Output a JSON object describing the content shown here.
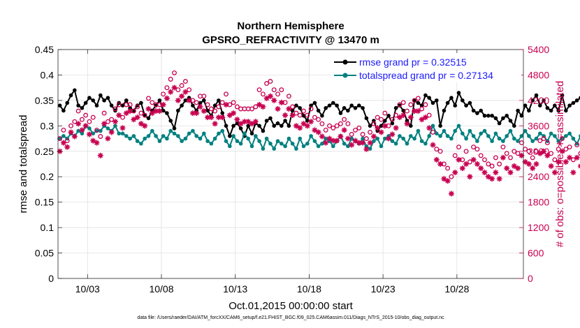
{
  "chart_data": {
    "type": "line",
    "title": "Northern Hemisphere",
    "subtitle": "GPSRO_REFRACTIVITY @ 13470 m",
    "xlabel": "Oct.01,2015 00:00:00 start",
    "ylabel": "rmse and totalspread",
    "ylabel_right": "# of obs: o=possible; ∗=assimilated",
    "footnote": "data file: /Users/raeder/DAI/ATM_forcXX/CAM6_setup/f.e21.FHIST_BGC.f09_025.CAM6assim.011/Diags_NTrS_2015-10/obs_diag_output.nc",
    "xlim": [
      1,
      32.5
    ],
    "ylim": [
      0,
      0.45
    ],
    "ylim_right": [
      0,
      5400
    ],
    "x_ticks": [
      3,
      8,
      13,
      18,
      23,
      28
    ],
    "x_tick_labels": [
      "10/03",
      "10/08",
      "10/13",
      "10/18",
      "10/23",
      "10/28"
    ],
    "y_ticks": [
      0,
      0.05,
      0.1,
      0.15,
      0.2,
      0.25,
      0.3,
      0.35,
      0.4,
      0.45
    ],
    "y_tick_labels": [
      "0",
      "0.05",
      "0.1",
      "0.15",
      "0.2",
      "0.25",
      "0.3",
      "0.35",
      "0.4",
      "0.45"
    ],
    "y_ticks_right": [
      0,
      600,
      1200,
      1800,
      2400,
      3000,
      3600,
      4200,
      4800,
      5400
    ],
    "y_tick_labels_right": [
      "0",
      "600",
      "1200",
      "1800",
      "2400",
      "3000",
      "3600",
      "4200",
      "4800",
      "5400"
    ],
    "grid": true,
    "legend_position": "top-right",
    "series": [
      {
        "name": "rmse grand pr = 0.32515",
        "axis": "left",
        "color": "#000000",
        "marker": "filled-circle",
        "x_start": 1.125,
        "x_step": 0.25,
        "values": [
          0.34,
          0.33,
          0.345,
          0.36,
          0.37,
          0.34,
          0.335,
          0.345,
          0.355,
          0.35,
          0.34,
          0.36,
          0.35,
          0.355,
          0.34,
          0.33,
          0.345,
          0.34,
          0.35,
          0.335,
          0.33,
          0.34,
          0.345,
          0.32,
          0.315,
          0.33,
          0.34,
          0.35,
          0.33,
          0.325,
          0.31,
          0.295,
          0.33,
          0.34,
          0.35,
          0.355,
          0.34,
          0.33,
          0.345,
          0.35,
          0.33,
          0.32,
          0.34,
          0.35,
          0.325,
          0.3,
          0.28,
          0.3,
          0.305,
          0.295,
          0.28,
          0.3,
          0.285,
          0.305,
          0.3,
          0.29,
          0.31,
          0.315,
          0.3,
          0.305,
          0.3,
          0.31,
          0.3,
          0.33,
          0.34,
          0.335,
          0.32,
          0.31,
          0.34,
          0.345,
          0.33,
          0.32,
          0.335,
          0.34,
          0.345,
          0.34,
          0.325,
          0.335,
          0.33,
          0.34,
          0.335,
          0.34,
          0.335,
          0.315,
          0.3,
          0.31,
          0.29,
          0.3,
          0.31,
          0.32,
          0.305,
          0.335,
          0.34,
          0.33,
          0.31,
          0.3,
          0.35,
          0.345,
          0.34,
          0.36,
          0.355,
          0.345,
          0.35,
          0.3,
          0.33,
          0.345,
          0.355,
          0.34,
          0.365,
          0.35,
          0.34,
          0.345,
          0.33,
          0.325,
          0.33,
          0.32,
          0.32,
          0.32,
          0.315,
          0.305,
          0.315,
          0.32,
          0.31,
          0.3,
          0.33,
          0.32,
          0.34,
          0.33,
          0.35,
          0.36,
          0.34,
          0.35,
          0.335,
          0.33,
          0.34,
          0.33,
          0.36,
          0.33,
          0.34,
          0.345,
          0.35,
          0.355,
          0.33,
          0.32,
          0.315,
          0.29,
          0.3,
          0.32,
          0.33,
          0.345,
          0.34,
          0.325,
          0.31,
          0.315,
          0.3,
          0.33,
          0.34,
          0.355,
          0.335,
          0.345,
          0.34,
          0.335,
          0.33,
          0.325,
          0.345,
          0.35,
          0.355,
          0.33,
          0.34,
          0.335,
          0.345,
          0.355,
          0.34,
          0.335,
          0.345,
          0.37,
          0.35,
          0.32,
          0.335,
          0.34,
          0.32
        ]
      },
      {
        "name": "totalspread grand pr = 0.27134",
        "axis": "left",
        "color": "#008080",
        "marker": "filled-circle",
        "x_start": 1.125,
        "x_step": 0.25,
        "values": [
          0.275,
          0.28,
          0.275,
          0.285,
          0.28,
          0.29,
          0.285,
          0.3,
          0.295,
          0.285,
          0.29,
          0.29,
          0.3,
          0.295,
          0.29,
          0.3,
          0.285,
          0.285,
          0.28,
          0.275,
          0.28,
          0.27,
          0.265,
          0.275,
          0.28,
          0.29,
          0.28,
          0.27,
          0.28,
          0.275,
          0.29,
          0.285,
          0.28,
          0.27,
          0.275,
          0.285,
          0.29,
          0.28,
          0.275,
          0.285,
          0.27,
          0.265,
          0.275,
          0.285,
          0.29,
          0.27,
          0.26,
          0.28,
          0.27,
          0.265,
          0.285,
          0.275,
          0.26,
          0.28,
          0.27,
          0.255,
          0.275,
          0.265,
          0.255,
          0.27,
          0.265,
          0.26,
          0.275,
          0.265,
          0.255,
          0.275,
          0.26,
          0.265,
          0.28,
          0.27,
          0.26,
          0.265,
          0.275,
          0.27,
          0.26,
          0.27,
          0.28,
          0.265,
          0.26,
          0.275,
          0.27,
          0.265,
          0.275,
          0.26,
          0.255,
          0.27,
          0.275,
          0.26,
          0.275,
          0.28,
          0.27,
          0.265,
          0.28,
          0.275,
          0.265,
          0.28,
          0.275,
          0.29,
          0.27,
          0.265,
          0.28,
          0.3,
          0.285,
          0.28,
          0.29,
          0.28,
          0.275,
          0.29,
          0.3,
          0.285,
          0.275,
          0.29,
          0.28,
          0.27,
          0.285,
          0.29,
          0.28,
          0.27,
          0.285,
          0.275,
          0.27,
          0.28,
          0.29,
          0.275,
          0.27,
          0.28,
          0.29,
          0.28,
          0.27,
          0.275,
          0.285,
          0.28,
          0.27,
          0.285,
          0.28,
          0.27,
          0.275,
          0.28,
          0.285,
          0.275,
          0.265,
          0.28,
          0.285,
          0.275,
          0.265,
          0.285,
          0.29,
          0.28,
          0.275,
          0.28,
          0.29,
          0.275,
          0.27,
          0.29,
          0.285,
          0.28,
          0.29,
          0.3,
          0.285,
          0.28,
          0.29,
          0.295,
          0.28,
          0.275,
          0.285,
          0.28,
          0.27,
          0.29,
          0.3,
          0.28,
          0.275,
          0.3,
          0.29,
          0.27,
          0.28,
          0.29,
          0.3,
          0.275,
          0.27,
          0.265
        ]
      },
      {
        "name": "obs possible",
        "axis": "right",
        "color": "#c80050",
        "marker": "open-circle",
        "x_start": 1.125,
        "x_step": 0.25,
        "values": [
          3300,
          3500,
          3250,
          3600,
          3700,
          3950,
          3750,
          3850,
          3700,
          3800,
          3500,
          3350,
          3900,
          3700,
          3750,
          4000,
          4100,
          3800,
          4100,
          4100,
          3950,
          4050,
          3900,
          3850,
          4250,
          4150,
          4100,
          4100,
          4350,
          4500,
          4700,
          4850,
          4450,
          4550,
          4650,
          4450,
          4200,
          4150,
          4300,
          4300,
          4100,
          4000,
          3950,
          4050,
          4150,
          4350,
          4100,
          4150,
          4050,
          4000,
          4000,
          4000,
          4000,
          4050,
          4450,
          4350,
          4600,
          4650,
          4450,
          4350,
          4450,
          4150,
          4300,
          4050,
          3900,
          3850,
          3950,
          3850,
          4000,
          3800,
          3750,
          3650,
          3500,
          3600,
          3550,
          3600,
          3650,
          3750,
          3650,
          3400,
          3500,
          3550,
          3400,
          3300,
          3450,
          3650,
          3800,
          3750,
          3900,
          3600,
          3750,
          3850,
          4100,
          4150,
          3950,
          4100,
          4200,
          4250,
          4000,
          4100,
          3850,
          3450,
          3050,
          3000,
          2700,
          2600,
          2400,
          2900,
          3100,
          2800,
          3000,
          2750,
          3100,
          3050,
          2900,
          2800,
          2700,
          2650,
          2850,
          2700,
          3100,
          2950,
          2850,
          3000,
          2950,
          3200,
          3050,
          3000,
          2850,
          3000,
          3250,
          3300,
          3200,
          2950,
          2800,
          3050,
          3300,
          3050,
          3100,
          2800,
          3150,
          2950,
          3100,
          3300,
          3600,
          3700,
          3500,
          3400,
          3450,
          3300,
          3600,
          3800,
          3700,
          3600,
          3700,
          3500,
          3400,
          3450,
          3500,
          3300,
          3400,
          3650,
          3500,
          3350,
          3550,
          3300,
          3650,
          3800,
          3500,
          3450,
          3250,
          3100,
          3350,
          3450,
          3200,
          2600,
          2700,
          3100,
          3350,
          3400,
          3300,
          3150,
          3000
        ]
      },
      {
        "name": "obs assimilated",
        "axis": "right",
        "color": "#c80050",
        "marker": "asterisk",
        "x_start": 1.125,
        "x_step": 0.25,
        "values": [
          3000,
          3200,
          3100,
          3450,
          3350,
          3650,
          3500,
          3600,
          3400,
          3250,
          3200,
          2900,
          3650,
          3300,
          3450,
          3700,
          3850,
          3550,
          3900,
          3950,
          3750,
          3800,
          3650,
          3600,
          4000,
          3900,
          3950,
          3950,
          4100,
          4250,
          4400,
          4500,
          4200,
          4300,
          4400,
          4200,
          3900,
          3900,
          4050,
          3950,
          3800,
          3800,
          3650,
          3800,
          3800,
          4100,
          3850,
          3900,
          3750,
          3650,
          3700,
          3700,
          3650,
          3700,
          4100,
          4050,
          4250,
          4300,
          4200,
          4000,
          4150,
          3850,
          4000,
          3850,
          3600,
          3550,
          3650,
          3600,
          3700,
          3500,
          3450,
          3350,
          3200,
          3300,
          3250,
          3250,
          3350,
          3500,
          3300,
          3150,
          3250,
          3200,
          3200,
          3050,
          3200,
          3350,
          3550,
          3450,
          3600,
          3300,
          3400,
          3550,
          3800,
          3850,
          3650,
          3800,
          3950,
          3950,
          3750,
          3800,
          3550,
          3150,
          2800,
          2700,
          2350,
          2300,
          2000,
          2500,
          2800,
          2600,
          2700,
          2400,
          2800,
          2700,
          2600,
          2500,
          2400,
          2350,
          2500,
          2350,
          2850,
          2600,
          2500,
          2650,
          2600,
          2900,
          2750,
          2700,
          2600,
          2700,
          2950,
          3000,
          2900,
          2650,
          2500,
          2750,
          3000,
          2750,
          2850,
          2500,
          2850,
          2650,
          2800,
          3000,
          3300,
          3400,
          3200,
          3100,
          3150,
          3050,
          3300,
          3450,
          3400,
          3300,
          3400,
          3200,
          3100,
          3150,
          3200,
          3000,
          3100,
          3350,
          3200,
          3050,
          3250,
          3000,
          3350,
          3500,
          3200,
          3150,
          2950,
          2800,
          3050,
          3150,
          2950,
          2350,
          2450,
          2850,
          3050,
          3100,
          3000,
          2900,
          0
        ]
      }
    ]
  }
}
